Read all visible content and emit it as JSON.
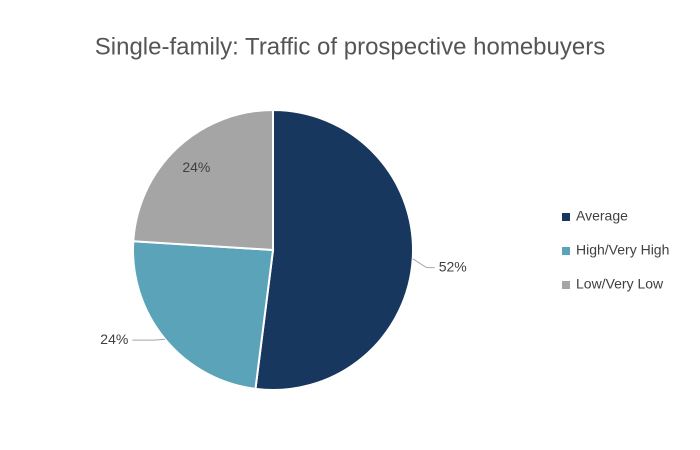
{
  "chart_data": {
    "type": "pie",
    "title": "Single-family: Traffic of prospective homebuyers",
    "categories": [
      "Average",
      "High/Very High",
      "Low/Very Low"
    ],
    "values": [
      52,
      24,
      24
    ],
    "value_labels": [
      "52%",
      "24%",
      "24%"
    ],
    "colors": [
      "#17375e",
      "#5ba3b9",
      "#a5a5a5"
    ],
    "legend": "right"
  }
}
